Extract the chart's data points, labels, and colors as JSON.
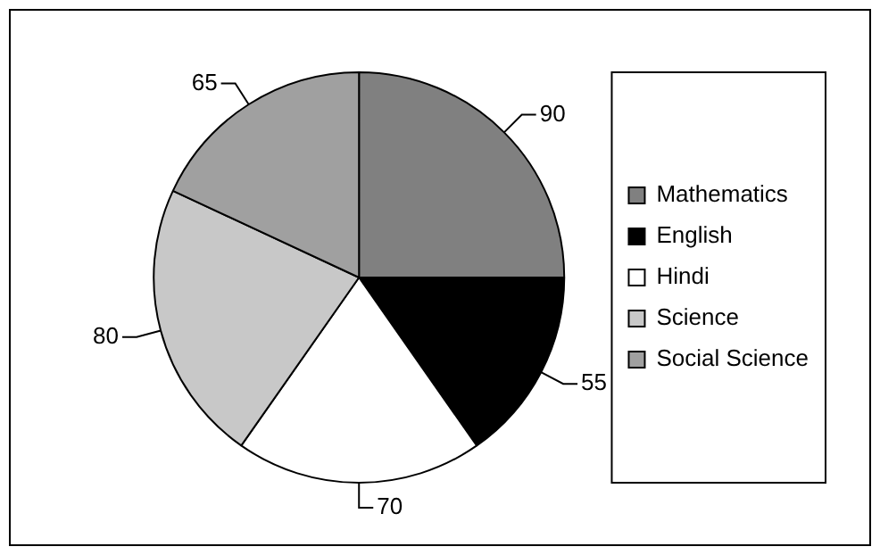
{
  "chart_data": {
    "type": "pie",
    "categories": [
      "Mathematics",
      "English",
      "Hindi",
      "Science",
      "Social Science"
    ],
    "values": [
      90,
      55,
      70,
      80,
      65
    ],
    "colors": [
      "#808080",
      "#000000",
      "#ffffff",
      "#c8c8c8",
      "#a0a0a0"
    ],
    "data_labels": true,
    "legend": "right"
  }
}
